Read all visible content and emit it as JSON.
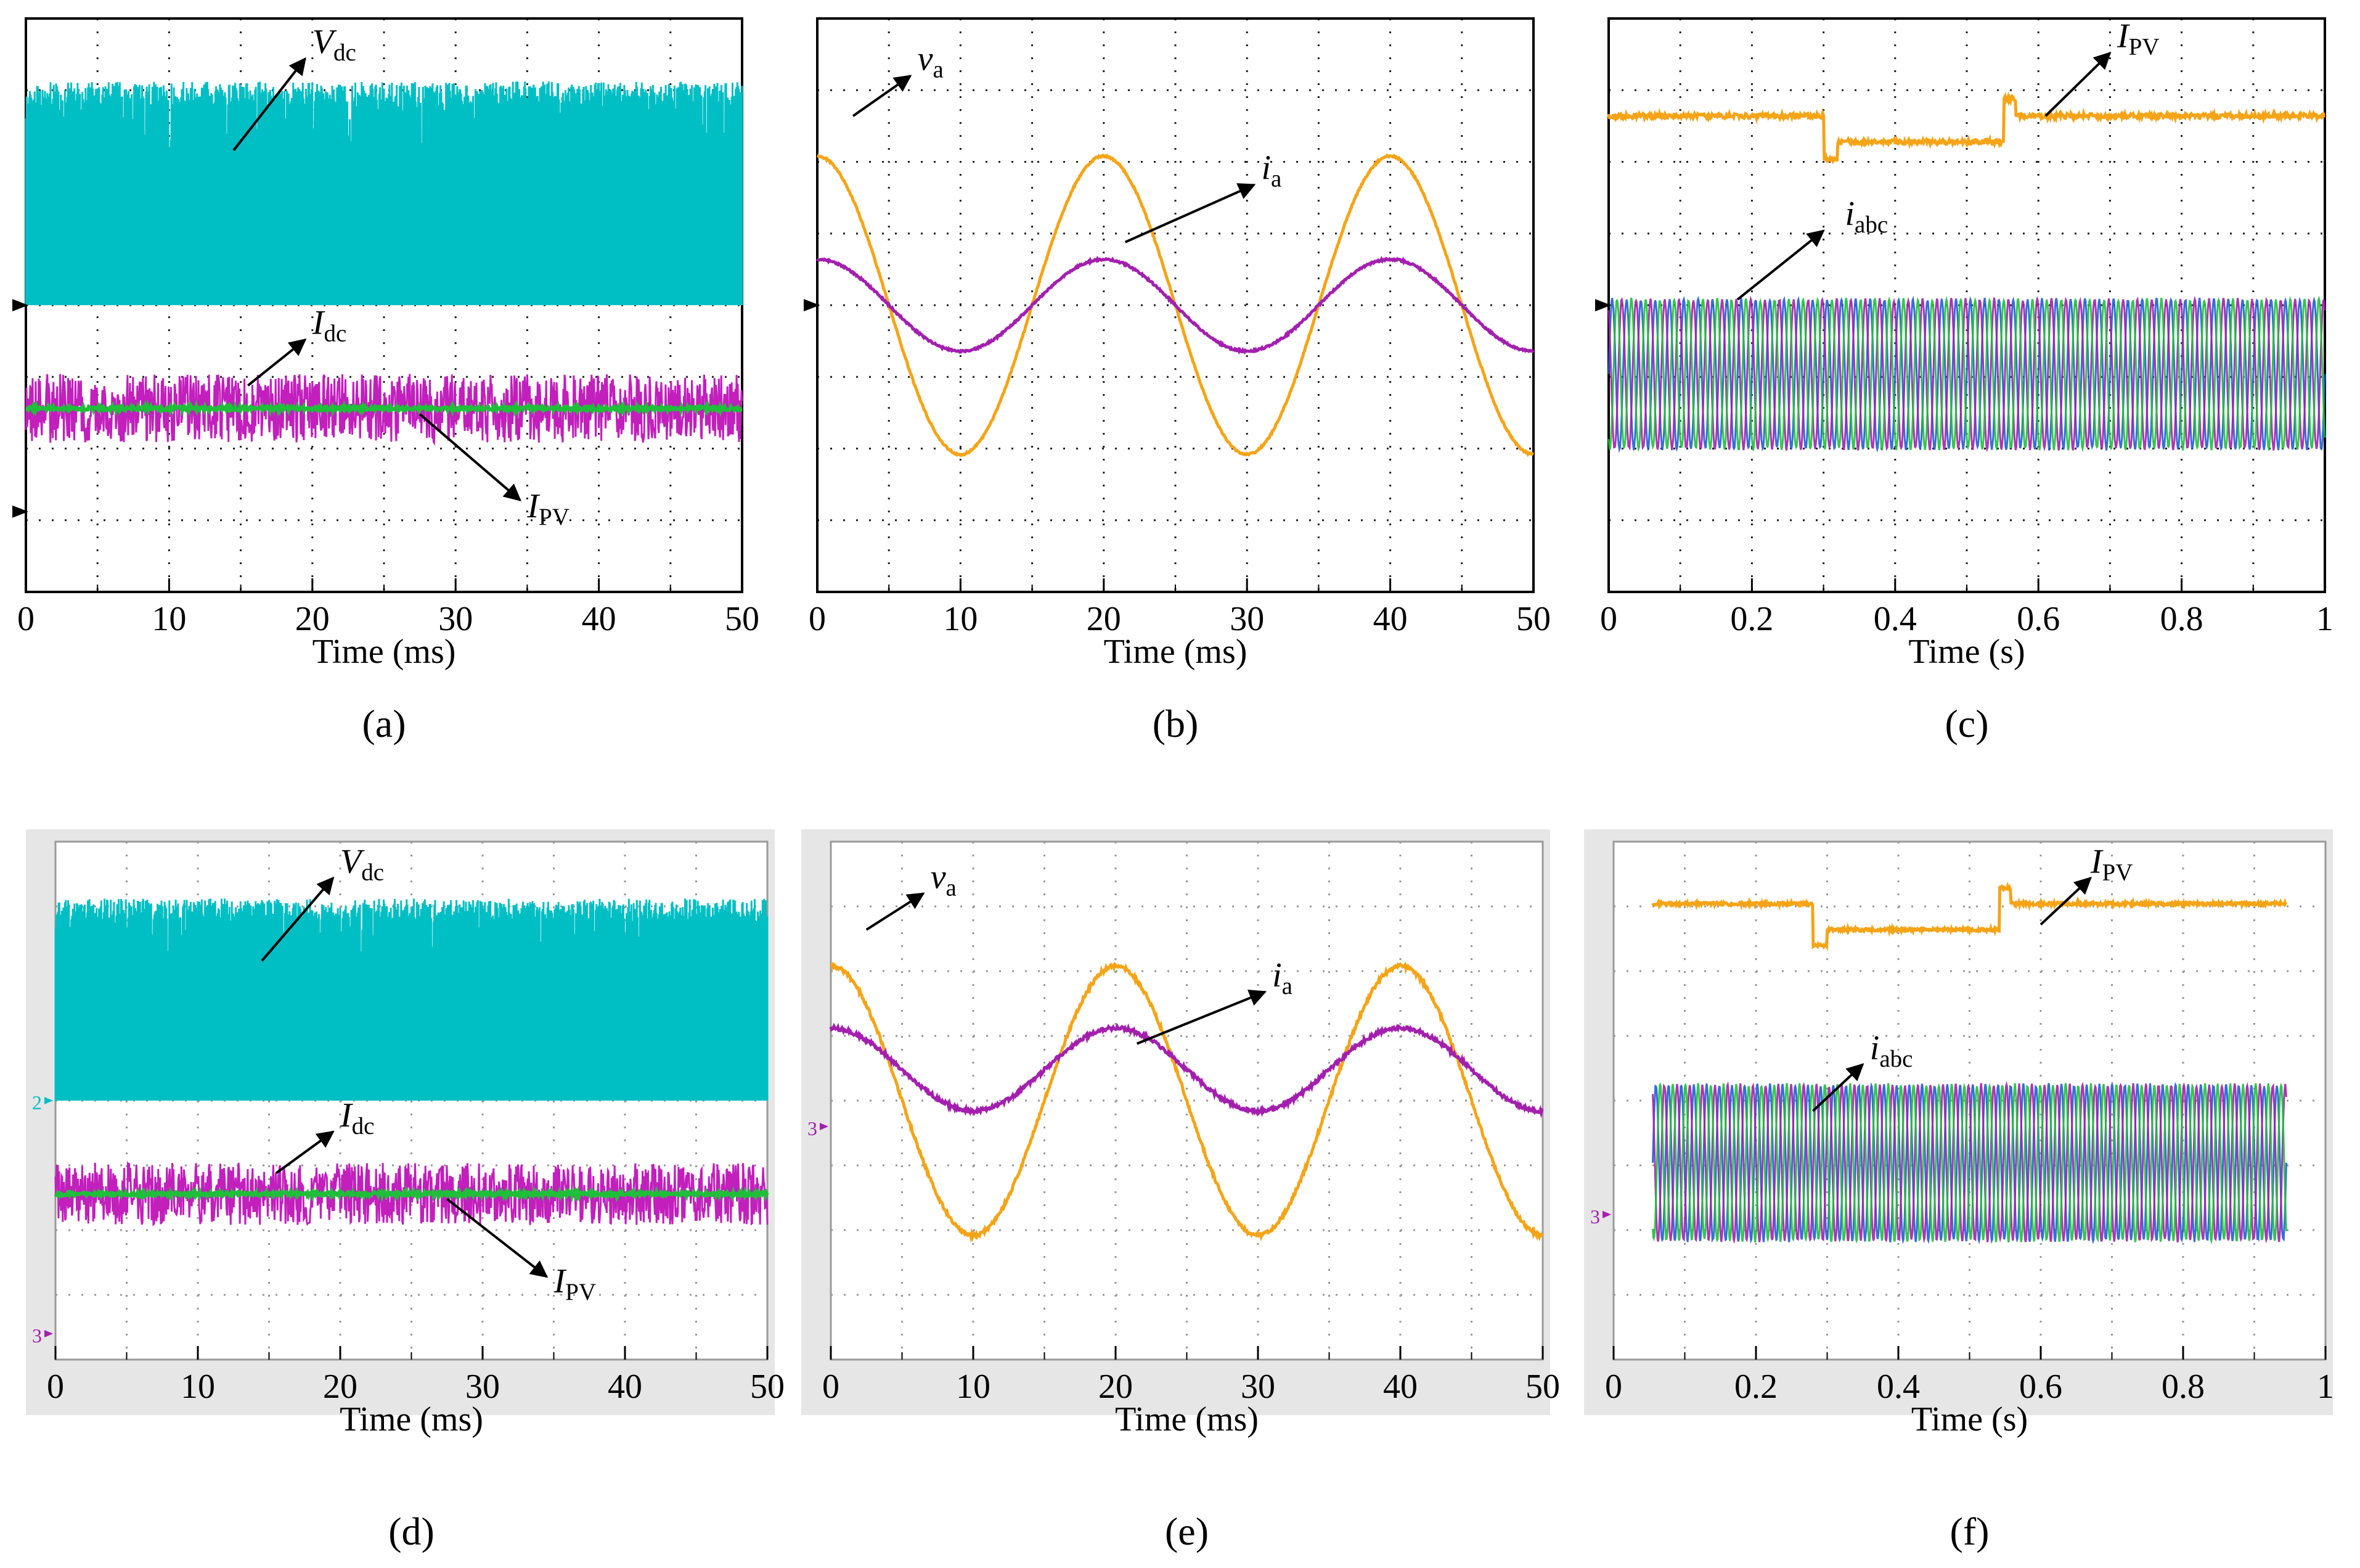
{
  "figure": {
    "panels": [
      {
        "id": "a",
        "caption": "(a)",
        "xlabel": "Time (ms)",
        "style": "sim",
        "xticks": [
          "0",
          "10",
          "20",
          "30",
          "40",
          "50"
        ],
        "labels": [
          {
            "base": "V",
            "sub": "dc"
          },
          {
            "base": "I",
            "sub": "dc"
          },
          {
            "base": "I",
            "sub": "PV"
          }
        ]
      },
      {
        "id": "b",
        "caption": "(b)",
        "xlabel": "Time (ms)",
        "style": "sim",
        "xticks": [
          "0",
          "10",
          "20",
          "30",
          "40",
          "50"
        ],
        "labels": [
          {
            "base": "v",
            "sub": "a"
          },
          {
            "base": "i",
            "sub": "a"
          }
        ]
      },
      {
        "id": "c",
        "caption": "(c)",
        "xlabel": "Time (s)",
        "style": "sim",
        "xticks": [
          "0",
          "0.2",
          "0.4",
          "0.6",
          "0.8",
          "1"
        ],
        "labels": [
          {
            "base": "I",
            "sub": "PV"
          },
          {
            "base": "i",
            "sub": "abc"
          }
        ]
      },
      {
        "id": "d",
        "caption": "(d)",
        "xlabel": "Time (ms)",
        "style": "exp",
        "xticks": [
          "0",
          "10",
          "20",
          "30",
          "40",
          "50"
        ],
        "labels": [
          {
            "base": "V",
            "sub": "dc"
          },
          {
            "base": "I",
            "sub": "dc"
          },
          {
            "base": "I",
            "sub": "PV"
          }
        ],
        "channel_markers": [
          "2",
          "3"
        ]
      },
      {
        "id": "e",
        "caption": "(e)",
        "xlabel": "Time (ms)",
        "style": "exp",
        "xticks": [
          "0",
          "10",
          "20",
          "30",
          "40",
          "50"
        ],
        "labels": [
          {
            "base": "v",
            "sub": "a"
          },
          {
            "base": "i",
            "sub": "a"
          }
        ],
        "channel_markers": [
          "3"
        ]
      },
      {
        "id": "f",
        "caption": "(f)",
        "xlabel": "Time (s)",
        "style": "exp",
        "xticks": [
          "0",
          "0.2",
          "0.4",
          "0.6",
          "0.8",
          "1"
        ],
        "labels": [
          {
            "base": "I",
            "sub": "PV"
          },
          {
            "base": "i",
            "sub": "abc"
          }
        ],
        "channel_markers": [
          "3"
        ]
      }
    ]
  },
  "colors": {
    "vdc": "#00bfc4",
    "idc": "#c21fbd",
    "ipv": "#1fbf3a",
    "orange": "#f5a417",
    "magenta": "#a31fae",
    "green": "#1fbf3a",
    "blue": "#1f5fd0",
    "grid": "#333333",
    "frame": "#000000",
    "exp_bg": "#e6e6e6"
  },
  "chart_data": [
    {
      "panel": "a",
      "type": "line",
      "title": "",
      "xlabel": "Time (ms)",
      "ylabel": "",
      "xlim": [
        0,
        50
      ],
      "series": [
        {
          "name": "Vdc",
          "description": "noisy DC link voltage band",
          "band": [
            0.9,
            3.0
          ]
        },
        {
          "name": "Idc",
          "description": "noisy DC current",
          "level": -0.6,
          "ripple": 0.35
        },
        {
          "name": "IPV",
          "description": "flat PV current",
          "level": -0.6
        }
      ]
    },
    {
      "panel": "b",
      "type": "line",
      "title": "",
      "xlabel": "Time (ms)",
      "ylabel": "",
      "xlim": [
        0,
        50
      ],
      "series": [
        {
          "name": "va",
          "description": "sinusoid",
          "amplitude": 2.6,
          "period_ms": 20,
          "peak_at_ms": [
            0,
            20,
            40
          ],
          "trough_at_ms": [
            10,
            30
          ]
        },
        {
          "name": "ia",
          "description": "sinusoid",
          "amplitude": 0.8,
          "offset": 0.0,
          "period_ms": 20,
          "peak_at_ms": [
            0,
            20,
            40
          ],
          "trough_at_ms": [
            10,
            30
          ]
        }
      ]
    },
    {
      "panel": "c",
      "type": "line",
      "title": "",
      "xlabel": "Time (s)",
      "ylabel": "",
      "xlim": [
        0,
        1
      ],
      "series": [
        {
          "name": "IPV",
          "description": "PV current with step",
          "x": [
            0,
            0.3,
            0.31,
            0.55,
            0.56,
            1
          ],
          "y": [
            2.4,
            2.4,
            2.0,
            2.05,
            2.55,
            2.4
          ]
        },
        {
          "name": "iabc",
          "description": "three-phase currents",
          "amplitude": 1.4,
          "change_points_s": [
            0.3,
            0.55
          ]
        }
      ]
    },
    {
      "panel": "d",
      "type": "line",
      "title": "",
      "xlabel": "Time (ms)",
      "ylabel": "",
      "xlim": [
        0,
        50
      ],
      "series": [
        {
          "name": "Vdc",
          "description": "noisy DC link voltage band (experimental)"
        },
        {
          "name": "Idc",
          "description": "noisy DC current (experimental)"
        },
        {
          "name": "IPV",
          "description": "flat PV current (experimental)"
        }
      ]
    },
    {
      "panel": "e",
      "type": "line",
      "title": "",
      "xlabel": "Time (ms)",
      "ylabel": "",
      "xlim": [
        0,
        50
      ],
      "series": [
        {
          "name": "va",
          "description": "sinusoid (experimental)",
          "period_ms": 20
        },
        {
          "name": "ia",
          "description": "sinusoid (experimental)",
          "period_ms": 20
        }
      ]
    },
    {
      "panel": "f",
      "type": "line",
      "title": "",
      "xlabel": "Time (s)",
      "ylabel": "",
      "xlim": [
        0,
        1
      ],
      "series": [
        {
          "name": "IPV",
          "description": "PV current with step (experimental)",
          "change_points_s": [
            0.29,
            0.55
          ]
        },
        {
          "name": "iabc",
          "description": "three-phase currents (experimental)",
          "change_points_s": [
            0.29,
            0.55
          ]
        }
      ]
    }
  ]
}
